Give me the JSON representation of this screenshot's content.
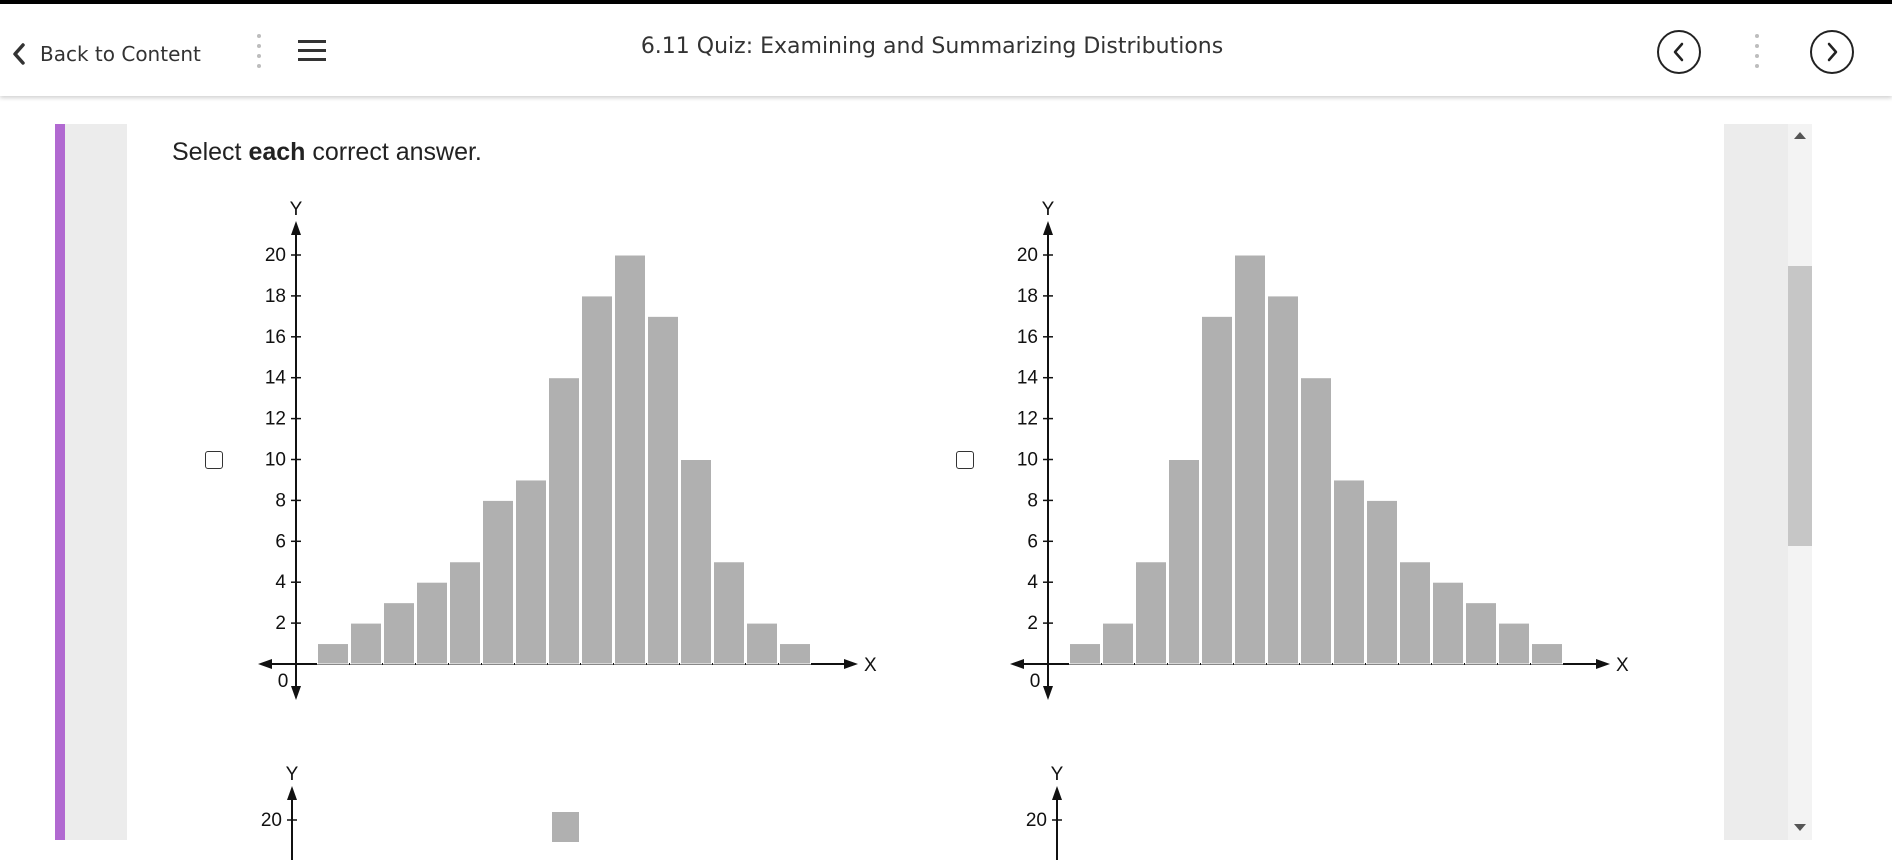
{
  "header": {
    "back_label": "Back to Content",
    "title": "6.11 Quiz: Examining and Summarizing Distributions",
    "icons": [
      "chevron-left-icon",
      "hamburger-menu-icon",
      "prev-circle-icon",
      "next-circle-icon"
    ]
  },
  "question": {
    "instruction_prefix": "Select ",
    "instruction_bold": "each",
    "instruction_suffix": " correct answer."
  },
  "colors": {
    "accent": "#b169d1",
    "bar": "#b0b0b0",
    "panel": "#ececec"
  },
  "chart_data": [
    {
      "type": "bar",
      "xlabel": "X",
      "ylabel": "Y",
      "origin_label": "0",
      "ylim": [
        0,
        20
      ],
      "yticks": [
        2,
        4,
        6,
        8,
        10,
        12,
        14,
        16,
        18,
        20
      ],
      "values": [
        1,
        2,
        3,
        4,
        5,
        8,
        9,
        14,
        18,
        20,
        17,
        10,
        5,
        2,
        1
      ]
    },
    {
      "type": "bar",
      "xlabel": "X",
      "ylabel": "Y",
      "origin_label": "0",
      "ylim": [
        0,
        20
      ],
      "yticks": [
        2,
        4,
        6,
        8,
        10,
        12,
        14,
        16,
        18,
        20
      ],
      "values": [
        1,
        2,
        5,
        10,
        17,
        20,
        18,
        14,
        9,
        8,
        5,
        4,
        3,
        2,
        1
      ]
    },
    {
      "type": "bar",
      "ylabel": "Y",
      "ylim": [
        0,
        20
      ],
      "yticks": [
        20
      ],
      "values": []
    },
    {
      "type": "bar",
      "ylabel": "Y",
      "ylim": [
        0,
        20
      ],
      "yticks": [
        20
      ],
      "values": []
    }
  ]
}
